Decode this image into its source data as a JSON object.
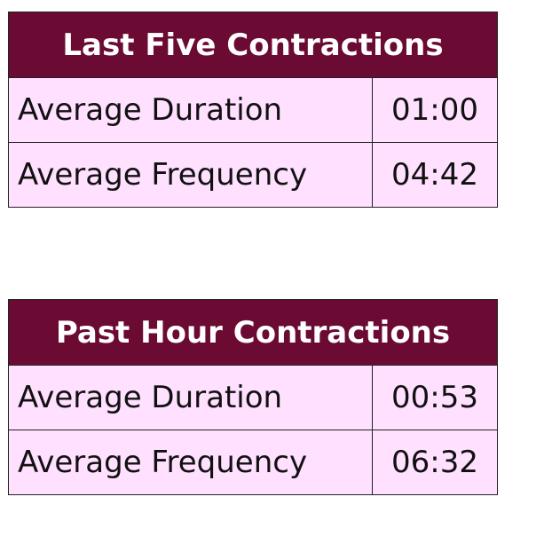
{
  "tables": [
    {
      "title": "Last Five Contractions",
      "rows": [
        [
          "Average Duration",
          "01:00"
        ],
        [
          "Average Frequency",
          "04:42"
        ]
      ]
    },
    {
      "title": "Past Hour Contractions",
      "rows": [
        [
          "Average Duration",
          "00:53"
        ],
        [
          "Average Frequency",
          "06:32"
        ]
      ]
    }
  ]
}
